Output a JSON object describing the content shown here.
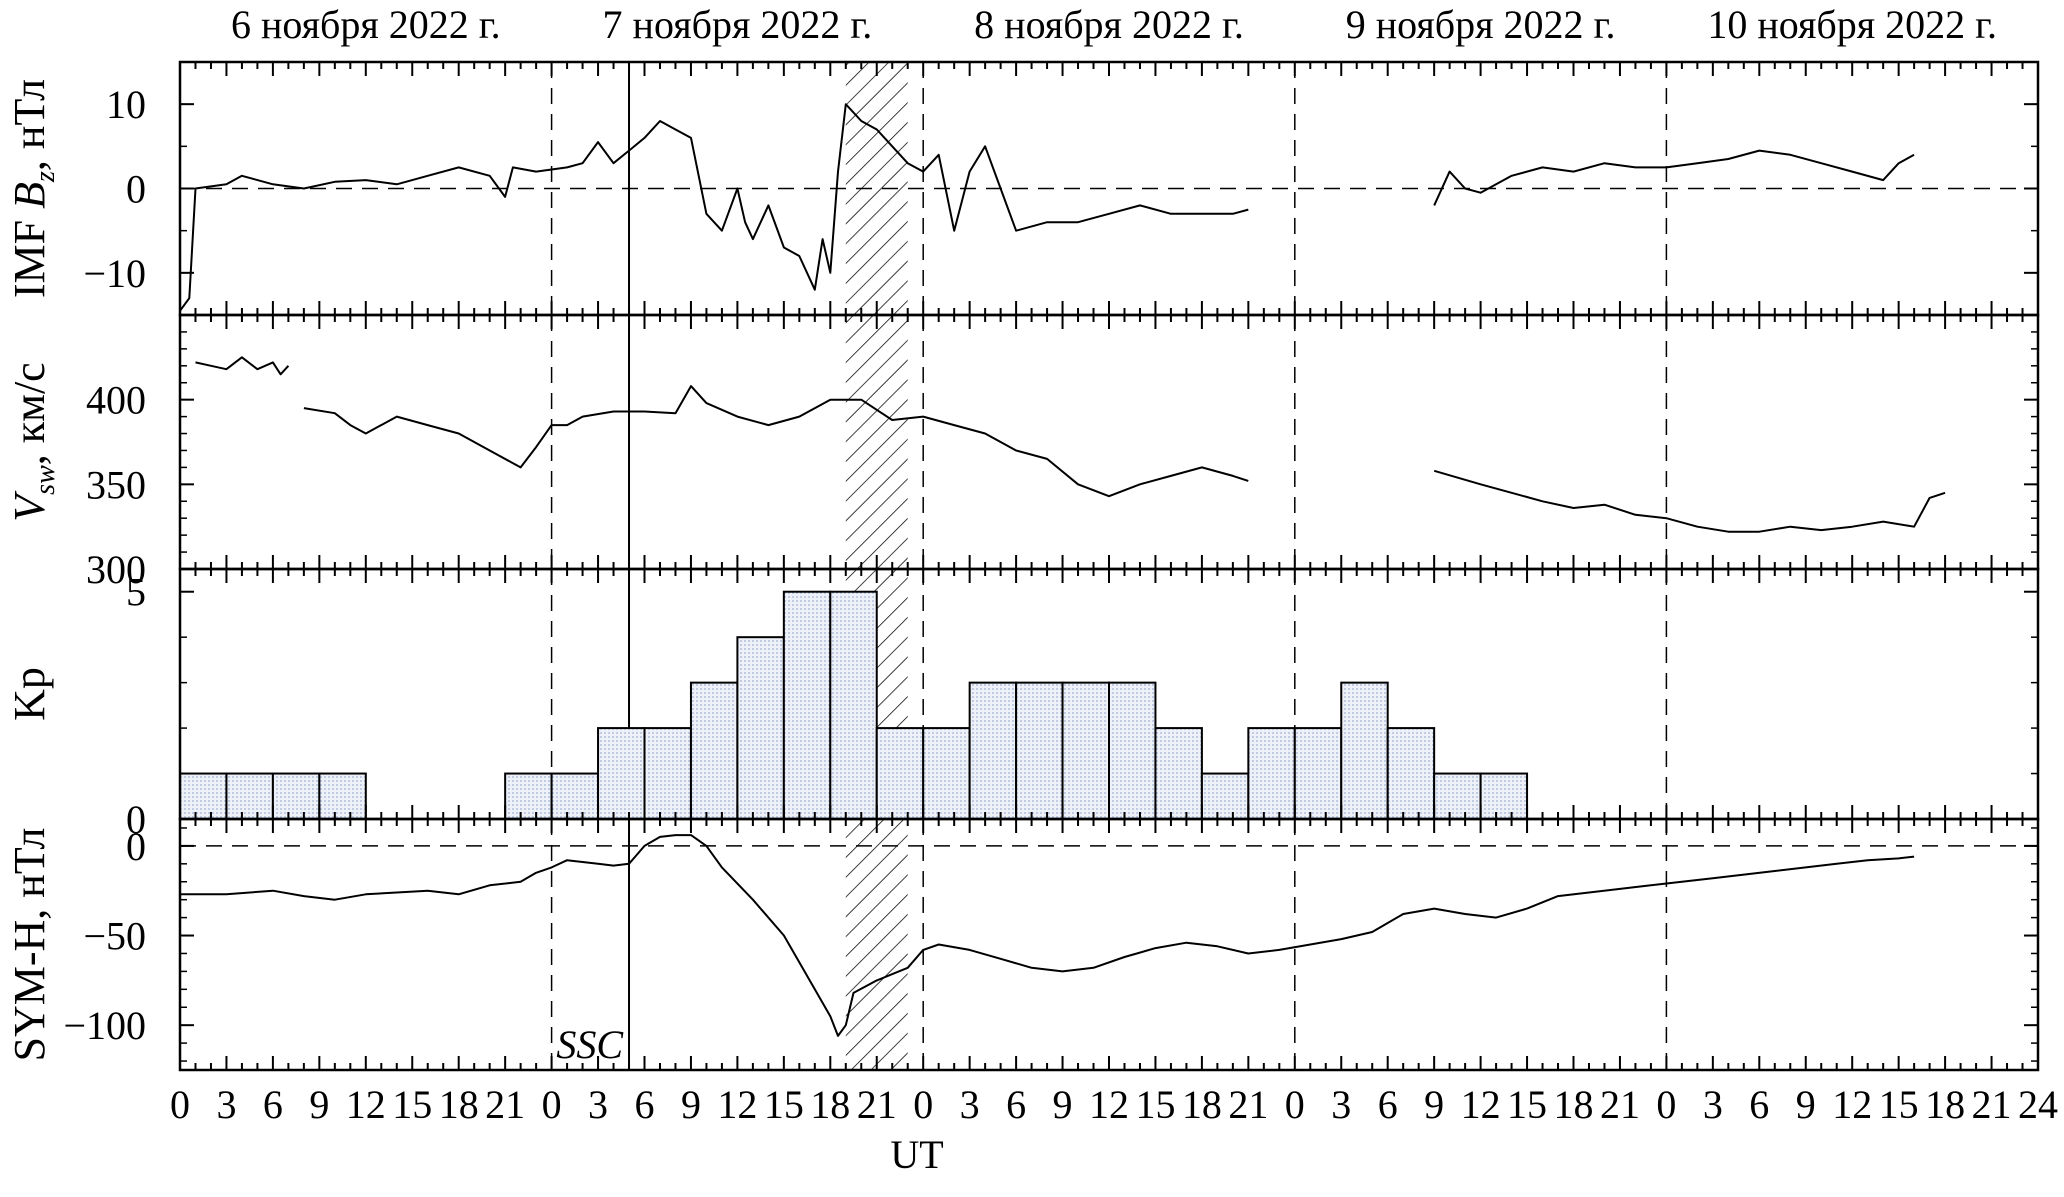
{
  "chart_data": {
    "type": "line",
    "x_unit": "UT (hours), 06–10 Nov 2022",
    "xlabel": "UT",
    "days": [
      "6 ноября 2022 г.",
      "7 ноября 2022 г.",
      "8 ноября 2022 г.",
      "9 ноября 2022 г.",
      "10 ноября 2022 г."
    ],
    "x_tick_labels": [
      "0",
      "3",
      "6",
      "9",
      "12",
      "15",
      "18",
      "21",
      "0",
      "3",
      "6",
      "9",
      "12",
      "15",
      "18",
      "21",
      "0",
      "3",
      "6",
      "9",
      "12",
      "15",
      "18",
      "21",
      "0",
      "3",
      "6",
      "9",
      "12",
      "15",
      "18",
      "21",
      "0",
      "3",
      "6",
      "9",
      "12",
      "15",
      "18",
      "21",
      "24"
    ],
    "ssc": {
      "label": "SSC",
      "t_hours": 29.0
    },
    "shaded_interval_hours": [
      43.0,
      47.0
    ],
    "panels": [
      {
        "id": "bz",
        "ylabel": "IMF B",
        "ylabel_sub": "z",
        "ylabel_unit": ", нТл",
        "ylim": [
          -15,
          15
        ],
        "yticks": [
          10,
          0,
          -10
        ],
        "ytick_labels": [
          "10",
          "0",
          "−10"
        ],
        "zero_line": true,
        "segments": [
          [
            [
              0,
              -14.5
            ],
            [
              0.6,
              -13
            ],
            [
              1,
              0
            ],
            [
              3,
              0.5
            ],
            [
              4,
              1.5
            ],
            [
              6,
              0.5
            ],
            [
              8,
              0
            ],
            [
              10,
              0.8
            ],
            [
              12,
              1
            ],
            [
              14,
              0.5
            ],
            [
              16,
              1.5
            ],
            [
              18,
              2.5
            ],
            [
              20,
              1.5
            ],
            [
              21,
              -1
            ],
            [
              21.5,
              2.5
            ],
            [
              23,
              2
            ],
            [
              25,
              2.5
            ],
            [
              26,
              3
            ],
            [
              27,
              5.5
            ],
            [
              28,
              3
            ],
            [
              29,
              4.5
            ],
            [
              30,
              6
            ],
            [
              31,
              8
            ],
            [
              32,
              7
            ],
            [
              33,
              6
            ],
            [
              34,
              -3
            ],
            [
              35,
              -5
            ],
            [
              36,
              0
            ],
            [
              36.5,
              -4
            ],
            [
              37,
              -6
            ],
            [
              38,
              -2
            ],
            [
              39,
              -7
            ],
            [
              40,
              -8
            ],
            [
              41,
              -12
            ],
            [
              41.5,
              -6
            ],
            [
              42,
              -10
            ],
            [
              42.5,
              2
            ],
            [
              43,
              10
            ],
            [
              44,
              8
            ],
            [
              45,
              7
            ],
            [
              46,
              5
            ],
            [
              47,
              3
            ],
            [
              48,
              2
            ],
            [
              49,
              4
            ],
            [
              50,
              -5
            ],
            [
              51,
              2
            ],
            [
              52,
              5
            ],
            [
              53,
              0
            ],
            [
              54,
              -5
            ],
            [
              56,
              -4
            ],
            [
              58,
              -4
            ],
            [
              60,
              -3
            ],
            [
              62,
              -2
            ],
            [
              64,
              -3
            ],
            [
              66,
              -3
            ],
            [
              68,
              -3
            ],
            [
              69,
              -2.5
            ]
          ],
          [
            [
              81,
              -2
            ],
            [
              82,
              2
            ],
            [
              83,
              0
            ],
            [
              84,
              -0.5
            ],
            [
              86,
              1.5
            ],
            [
              88,
              2.5
            ],
            [
              90,
              2
            ],
            [
              92,
              3
            ],
            [
              94,
              2.5
            ],
            [
              96,
              2.5
            ],
            [
              98,
              3
            ],
            [
              100,
              3.5
            ],
            [
              102,
              4.5
            ],
            [
              104,
              4
            ],
            [
              106,
              3
            ],
            [
              108,
              2
            ],
            [
              110,
              1
            ],
            [
              111,
              3
            ],
            [
              111.5,
              3.5
            ],
            [
              112,
              4
            ]
          ]
        ]
      },
      {
        "id": "vsw",
        "ylabel": "V",
        "ylabel_sub": "sw",
        "ylabel_unit": ", км/с",
        "ylim": [
          300,
          450
        ],
        "yticks": [
          400,
          350,
          300
        ],
        "ytick_labels": [
          "400",
          "350",
          "300"
        ],
        "zero_line": false,
        "segments": [
          [
            [
              1,
              422
            ],
            [
              2,
              420
            ],
            [
              3,
              418
            ],
            [
              4,
              425
            ],
            [
              5,
              418
            ],
            [
              6,
              422
            ],
            [
              6.5,
              415
            ],
            [
              7,
              420
            ]
          ],
          [
            [
              8,
              395
            ],
            [
              10,
              392
            ],
            [
              11,
              385
            ],
            [
              12,
              380
            ],
            [
              14,
              390
            ],
            [
              16,
              385
            ],
            [
              18,
              380
            ],
            [
              20,
              370
            ],
            [
              22,
              360
            ],
            [
              23,
              372
            ],
            [
              24,
              385
            ],
            [
              25,
              385
            ],
            [
              26,
              390
            ],
            [
              28,
              393
            ],
            [
              30,
              393
            ],
            [
              32,
              392
            ],
            [
              33,
              408
            ],
            [
              34,
              398
            ],
            [
              36,
              390
            ],
            [
              38,
              385
            ],
            [
              40,
              390
            ],
            [
              42,
              400
            ],
            [
              44,
              400
            ],
            [
              46,
              388
            ],
            [
              48,
              390
            ],
            [
              50,
              385
            ],
            [
              52,
              380
            ],
            [
              54,
              370
            ],
            [
              56,
              365
            ],
            [
              58,
              350
            ],
            [
              60,
              343
            ],
            [
              62,
              350
            ],
            [
              64,
              355
            ],
            [
              66,
              360
            ],
            [
              68,
              355
            ],
            [
              69,
              352
            ]
          ],
          [
            [
              81,
              358
            ],
            [
              84,
              350
            ],
            [
              86,
              345
            ],
            [
              88,
              340
            ],
            [
              90,
              336
            ],
            [
              92,
              338
            ],
            [
              94,
              332
            ],
            [
              96,
              330
            ],
            [
              98,
              325
            ],
            [
              100,
              322
            ],
            [
              102,
              322
            ],
            [
              104,
              325
            ],
            [
              106,
              323
            ],
            [
              108,
              325
            ],
            [
              110,
              328
            ],
            [
              112,
              325
            ],
            [
              113,
              342
            ],
            [
              114,
              345
            ]
          ]
        ]
      },
      {
        "id": "kp",
        "ylabel": "Kp",
        "ylim": [
          0,
          5.5
        ],
        "yticks": [
          5,
          0
        ],
        "ytick_labels": [
          "5",
          "0"
        ],
        "bars_3h": [
          1,
          1,
          1,
          1,
          0,
          0,
          0,
          1,
          1,
          2,
          2,
          3,
          4,
          5,
          5,
          2,
          2,
          3,
          3,
          3,
          3,
          2,
          1,
          2,
          2,
          3,
          2,
          1,
          1,
          0,
          0,
          0,
          0,
          0,
          0,
          0,
          0,
          0,
          0,
          0
        ]
      },
      {
        "id": "symh",
        "ylabel": "SYM-H",
        "ylabel_unit": ", нТл",
        "ylim": [
          -125,
          15
        ],
        "yticks": [
          0,
          -50,
          -100
        ],
        "ytick_labels": [
          "0",
          "−50",
          "−100"
        ],
        "zero_line": true,
        "segments": [
          [
            [
              0,
              -27
            ],
            [
              3,
              -27
            ],
            [
              6,
              -25
            ],
            [
              8,
              -28
            ],
            [
              10,
              -30
            ],
            [
              12,
              -27
            ],
            [
              14,
              -26
            ],
            [
              16,
              -25
            ],
            [
              18,
              -27
            ],
            [
              20,
              -22
            ],
            [
              22,
              -20
            ],
            [
              23,
              -15
            ],
            [
              24,
              -12
            ],
            [
              25,
              -8
            ],
            [
              26,
              -9
            ],
            [
              27,
              -10
            ],
            [
              28,
              -11
            ],
            [
              29,
              -10
            ],
            [
              30,
              0
            ],
            [
              31,
              5
            ],
            [
              32,
              6
            ],
            [
              33,
              6
            ],
            [
              34,
              0
            ],
            [
              35,
              -12
            ],
            [
              37,
              -30
            ],
            [
              39,
              -50
            ],
            [
              41,
              -80
            ],
            [
              42,
              -95
            ],
            [
              42.5,
              -106
            ],
            [
              43,
              -100
            ],
            [
              43.5,
              -82
            ],
            [
              45,
              -75
            ],
            [
              47,
              -68
            ],
            [
              48,
              -58
            ],
            [
              49,
              -55
            ],
            [
              51,
              -58
            ],
            [
              53,
              -63
            ],
            [
              55,
              -68
            ],
            [
              57,
              -70
            ],
            [
              59,
              -68
            ],
            [
              61,
              -62
            ],
            [
              63,
              -57
            ],
            [
              65,
              -54
            ],
            [
              67,
              -56
            ],
            [
              69,
              -60
            ],
            [
              71,
              -58
            ],
            [
              73,
              -55
            ],
            [
              75,
              -52
            ],
            [
              77,
              -48
            ],
            [
              79,
              -38
            ],
            [
              81,
              -35
            ],
            [
              83,
              -38
            ],
            [
              85,
              -40
            ],
            [
              87,
              -35
            ],
            [
              89,
              -28
            ],
            [
              91,
              -26
            ],
            [
              93,
              -24
            ],
            [
              95,
              -22
            ],
            [
              97,
              -20
            ],
            [
              99,
              -18
            ],
            [
              101,
              -16
            ],
            [
              103,
              -14
            ],
            [
              105,
              -12
            ],
            [
              107,
              -10
            ],
            [
              109,
              -8
            ],
            [
              111,
              -7
            ],
            [
              112,
              -6
            ]
          ]
        ]
      }
    ]
  }
}
